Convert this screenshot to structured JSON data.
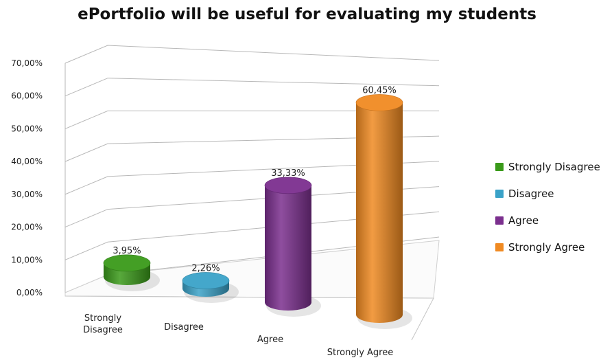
{
  "chart_data": {
    "type": "bar",
    "title": "ePortfolio will be useful for evaluating my students",
    "categories": [
      "Strongly Disagree",
      "Disagree",
      "Agree",
      "Strongly Agree"
    ],
    "category_labels": [
      [
        "Strongly",
        "Disagree"
      ],
      [
        "Disagree"
      ],
      [
        "Agree"
      ],
      [
        "Strongly Agree"
      ]
    ],
    "values": [
      3.95,
      2.26,
      33.33,
      60.45
    ],
    "data_labels": [
      "3,95%",
      "2,26%",
      "33,33%",
      "60,45%"
    ],
    "colors": [
      "#3a9a1a",
      "#3aa2c8",
      "#7b2f8e",
      "#f08a22"
    ],
    "ylim": [
      0,
      70
    ],
    "yticks": [
      "0,00%",
      "10,00%",
      "20,00%",
      "30,00%",
      "40,00%",
      "50,00%",
      "60,00%",
      "70,00%"
    ],
    "grid": true,
    "legend": "right",
    "bar_shape": "3d-cylinder"
  }
}
